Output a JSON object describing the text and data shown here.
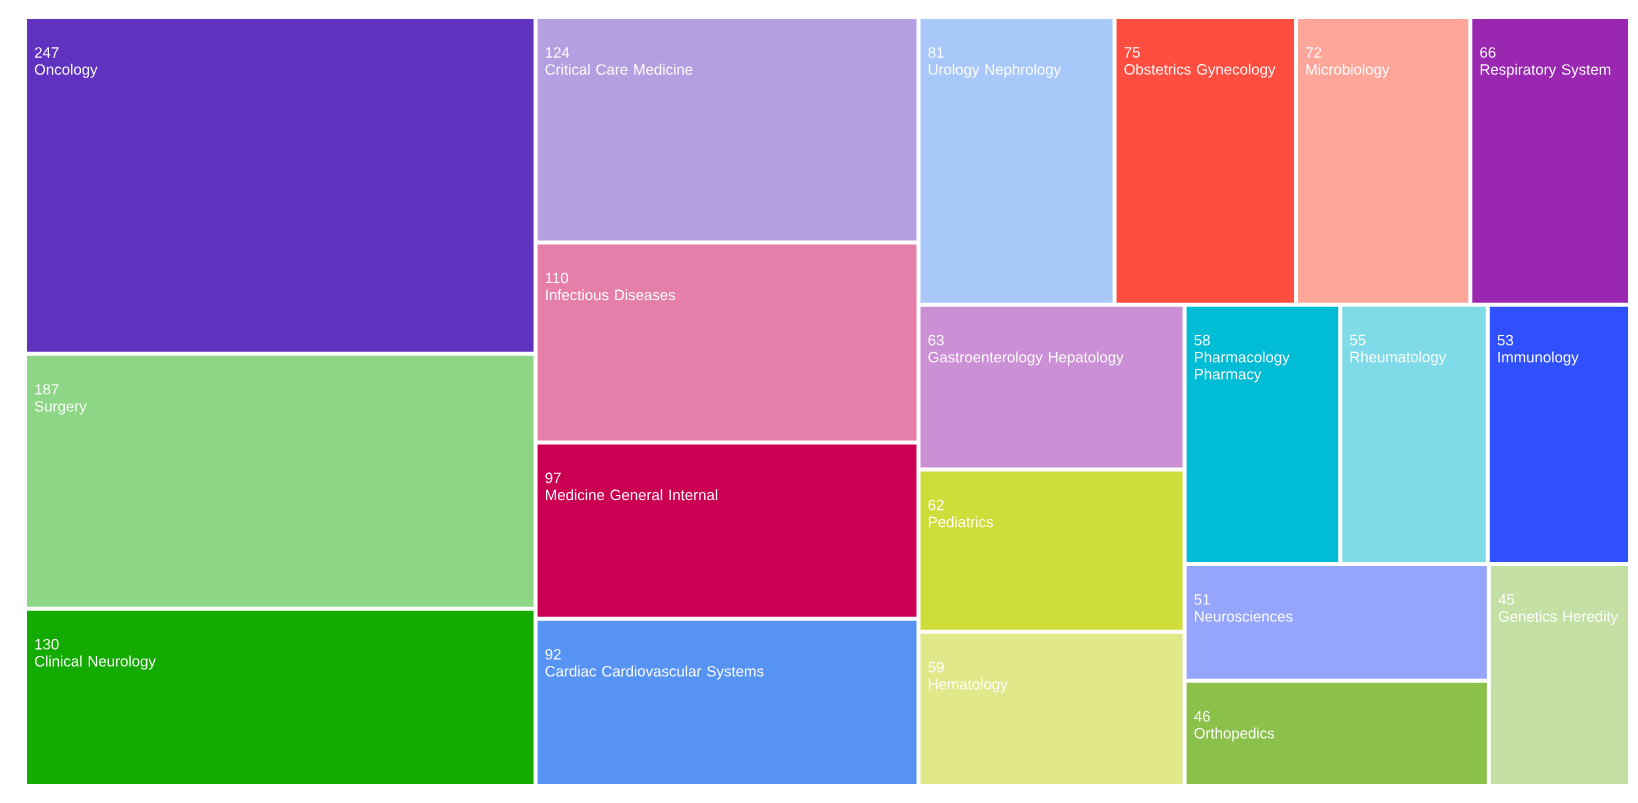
{
  "chart_data": {
    "type": "other",
    "data_labels": true,
    "categories": [
      "Oncology",
      "Surgery",
      "Clinical Neurology",
      "Critical Care Medicine",
      "Infectious Diseases",
      "Medicine General Internal",
      "Cardiac Cardiovascular Systems",
      "Urology Nephrology",
      "Obstetrics Gynecology",
      "Microbiology",
      "Respiratory System",
      "Gastroenterology Hepatology",
      "Pediatrics",
      "Hematology",
      "Pharmacology Pharmacy",
      "Rheumatology",
      "Immunology",
      "Neurosciences",
      "Orthopedics",
      "Genetics Heredity"
    ],
    "values": [
      247,
      187,
      130,
      124,
      110,
      97,
      92,
      81,
      75,
      72,
      66,
      63,
      62,
      59,
      58,
      55,
      53,
      51,
      46,
      45
    ],
    "colors": [
      "#5f33bf",
      "#8dd685",
      "#14ab00",
      "#b49fe0",
      "#e57fa9",
      "#cc0052",
      "#5793f3",
      "#a8c8fa",
      "#ff4d40",
      "#ffa69b",
      "#9a27b0",
      "#cb8fd6",
      "#cfdd3a",
      "#e0e88a",
      "#00bcd4",
      "#7fdbe8",
      "#3050fe",
      "#95a5fc",
      "#8bc14b",
      "#c5e0a5"
    ]
  }
}
